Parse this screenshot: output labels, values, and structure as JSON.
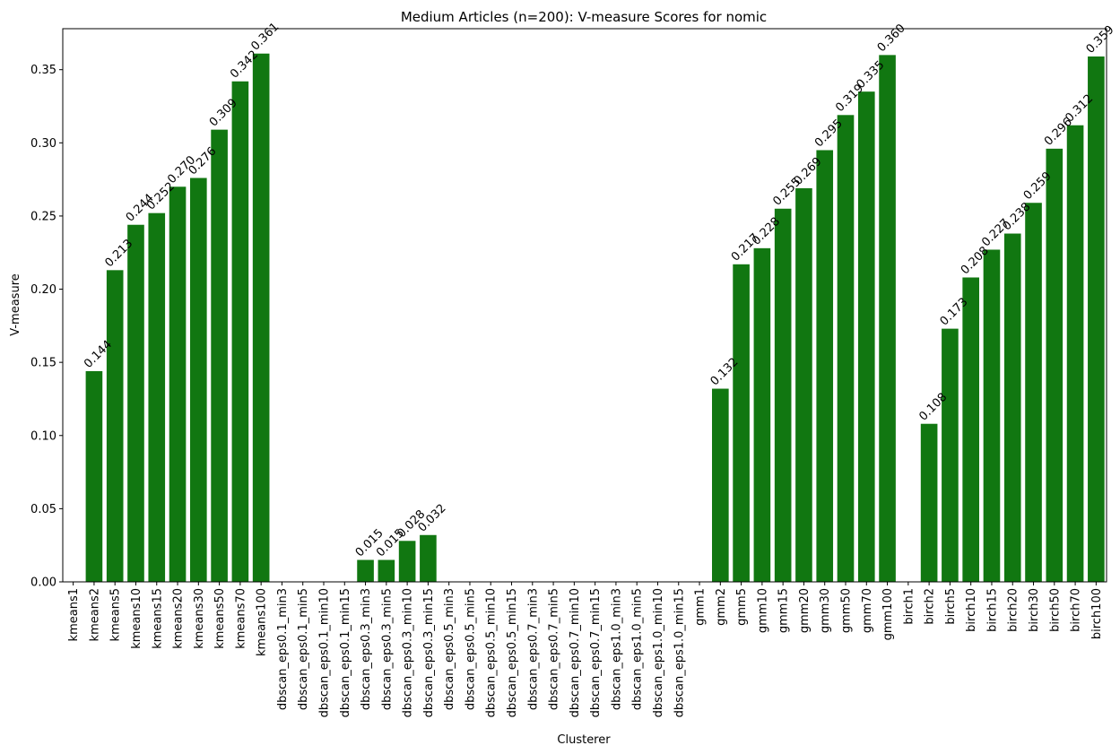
{
  "chart_data": {
    "type": "bar",
    "title": "Medium Articles (n=200): V-measure Scores for nomic",
    "xlabel": "Clusterer",
    "ylabel": "V-measure",
    "ylim": [
      0,
      0.378
    ],
    "yticks": [
      0.0,
      0.05,
      0.1,
      0.15,
      0.2,
      0.25,
      0.3,
      0.35
    ],
    "ytick_labels": [
      "0.00",
      "0.05",
      "0.10",
      "0.15",
      "0.20",
      "0.25",
      "0.30",
      "0.35"
    ],
    "bar_color": "#117711",
    "grid": false,
    "categories": [
      "kmeans1",
      "kmeans2",
      "kmeans5",
      "kmeans10",
      "kmeans15",
      "kmeans20",
      "kmeans30",
      "kmeans50",
      "kmeans70",
      "kmeans100",
      "dbscan_eps0.1_min3",
      "dbscan_eps0.1_min5",
      "dbscan_eps0.1_min10",
      "dbscan_eps0.1_min15",
      "dbscan_eps0.3_min3",
      "dbscan_eps0.3_min5",
      "dbscan_eps0.3_min10",
      "dbscan_eps0.3_min15",
      "dbscan_eps0.5_min3",
      "dbscan_eps0.5_min5",
      "dbscan_eps0.5_min10",
      "dbscan_eps0.5_min15",
      "dbscan_eps0.7_min3",
      "dbscan_eps0.7_min5",
      "dbscan_eps0.7_min10",
      "dbscan_eps0.7_min15",
      "dbscan_eps1.0_min3",
      "dbscan_eps1.0_min5",
      "dbscan_eps1.0_min10",
      "dbscan_eps1.0_min15",
      "gmm1",
      "gmm2",
      "gmm5",
      "gmm10",
      "gmm15",
      "gmm20",
      "gmm30",
      "gmm50",
      "gmm70",
      "gmm100",
      "birch1",
      "birch2",
      "birch5",
      "birch10",
      "birch15",
      "birch20",
      "birch30",
      "birch50",
      "birch70",
      "birch100"
    ],
    "values": [
      0,
      0.144,
      0.213,
      0.244,
      0.252,
      0.27,
      0.276,
      0.309,
      0.342,
      0.361,
      0,
      0,
      0,
      0,
      0.015,
      0.015,
      0.028,
      0.032,
      0,
      0,
      0,
      0,
      0,
      0,
      0,
      0,
      0,
      0,
      0,
      0,
      0,
      0.132,
      0.217,
      0.228,
      0.255,
      0.269,
      0.295,
      0.319,
      0.335,
      0.36,
      0,
      0.108,
      0.173,
      0.208,
      0.227,
      0.238,
      0.259,
      0.296,
      0.312,
      0.359
    ],
    "labels": [
      "",
      "0.144",
      "0.213",
      "0.244",
      "0.252",
      "0.270",
      "0.276",
      "0.309",
      "0.342",
      "0.361",
      "",
      "",
      "",
      "",
      "0.015",
      "0.015",
      "0.028",
      "0.032",
      "",
      "",
      "",
      "",
      "",
      "",
      "",
      "",
      "",
      "",
      "",
      "",
      "",
      "0.132",
      "0.217",
      "0.228",
      "0.255",
      "0.269",
      "0.295",
      "0.319",
      "0.335",
      "0.360",
      "",
      "0.108",
      "0.173",
      "0.208",
      "0.227",
      "0.238",
      "0.259",
      "0.296",
      "0.312",
      "0.359"
    ]
  }
}
